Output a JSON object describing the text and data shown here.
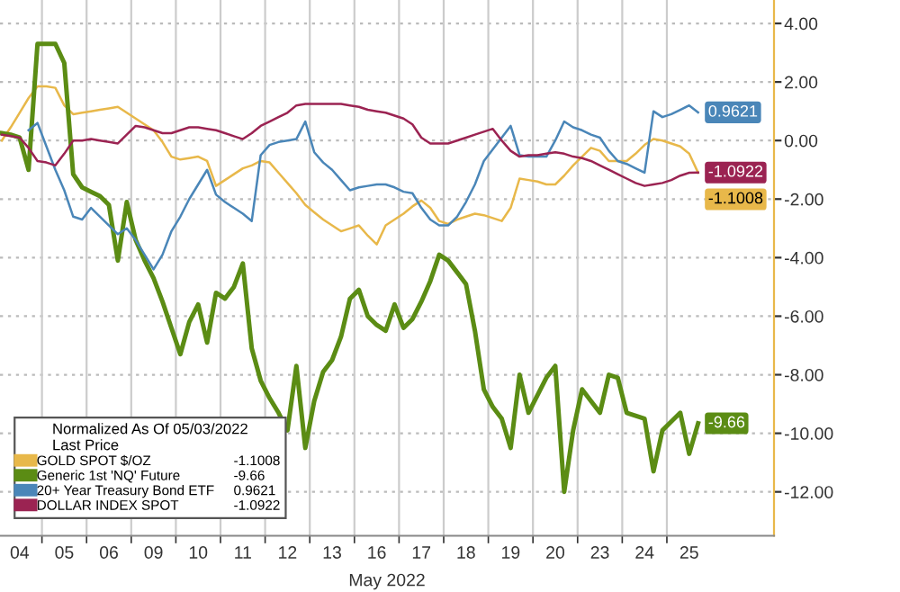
{
  "chart_data": {
    "type": "line",
    "xlabel": "May 2022",
    "legend_title": "Normalized As Of 05/03/2022\nLast Price",
    "categories": [
      null,
      null,
      "04",
      null,
      null,
      null,
      null,
      "05",
      null,
      null,
      null,
      null,
      "06",
      null,
      null,
      null,
      null,
      "09",
      null,
      null,
      null,
      null,
      "10",
      null,
      null,
      null,
      null,
      "11",
      null,
      null,
      null,
      null,
      "12",
      null,
      null,
      null,
      null,
      "13",
      null,
      null,
      null,
      null,
      "16",
      null,
      null,
      null,
      null,
      "17",
      null,
      null,
      null,
      null,
      "18",
      null,
      null,
      null,
      null,
      "19",
      null,
      null,
      null,
      null,
      "20",
      null,
      null,
      null,
      null,
      "23",
      null,
      null,
      null,
      null,
      "24",
      null,
      null,
      null,
      null,
      "25",
      null,
      null
    ],
    "ylim": [
      -13.5,
      4.8
    ],
    "yticks": [
      {
        "value": 4,
        "label": "4.00"
      },
      {
        "value": 2,
        "label": "2.00"
      },
      {
        "value": 0,
        "label": "0.00"
      },
      {
        "value": -2,
        "label": "-2.00"
      },
      {
        "value": -4,
        "label": "-4.00"
      },
      {
        "value": -6,
        "label": "-6.00"
      },
      {
        "value": -8,
        "label": "-8.00"
      },
      {
        "value": -10,
        "label": "-10.00"
      },
      {
        "value": -12,
        "label": "-12.00"
      }
    ],
    "grid": true,
    "legend": "bottom left",
    "series": [
      {
        "name": "GOLD SPOT $/OZ",
        "color": "#e8b84a",
        "values": [
          0.0,
          0.45,
          0.95,
          1.45,
          1.85,
          1.85,
          1.8,
          1.2,
          0.9,
          0.95,
          1.0,
          1.05,
          1.1,
          1.15,
          0.95,
          0.75,
          0.55,
          0.35,
          -0.05,
          -0.55,
          -0.65,
          -0.6,
          -0.55,
          -0.7,
          -1.55,
          -1.35,
          -1.15,
          -0.95,
          -0.85,
          -0.7,
          -0.75,
          -1.1,
          -1.45,
          -1.8,
          -2.2,
          -2.45,
          -2.7,
          -2.9,
          -3.1,
          -3.0,
          -2.9,
          -3.25,
          -3.55,
          -2.9,
          -2.7,
          -2.5,
          -2.25,
          -2.05,
          -2.3,
          -2.75,
          -2.85,
          -2.7,
          -2.6,
          -2.5,
          -2.55,
          -2.65,
          -2.75,
          -2.3,
          -1.3,
          -1.35,
          -1.4,
          -1.5,
          -1.5,
          -1.2,
          -0.85,
          -0.55,
          -0.25,
          -0.35,
          -0.7,
          -0.7,
          -0.7,
          -0.45,
          -0.15,
          0.05,
          0.0,
          -0.1,
          -0.2,
          -0.45,
          -1.1008,
          null
        ],
        "value_labels": [
          null,
          null,
          null,
          null,
          null,
          null,
          null,
          null,
          null,
          null,
          null,
          null,
          null,
          null,
          null,
          null,
          null,
          null,
          null,
          null,
          null,
          null,
          null,
          null,
          null,
          null,
          null,
          null,
          null,
          null,
          null,
          null,
          null,
          null,
          null,
          null,
          null,
          null,
          null,
          null,
          null,
          null,
          null,
          null,
          null,
          null,
          null,
          null,
          null,
          null,
          null,
          null,
          null,
          null,
          null,
          null,
          null,
          null,
          null,
          null,
          null,
          null,
          null,
          null,
          null,
          null,
          null,
          null,
          null,
          null,
          null,
          null,
          null,
          null,
          null,
          null,
          null,
          null,
          "-1.1008",
          null
        ]
      },
      {
        "name": "Generic 1st 'NQ' Future",
        "color": "#5b8c14",
        "values": [
          0.25,
          0.2,
          0.1,
          -1.0,
          3.3,
          3.3,
          3.3,
          2.65,
          -1.15,
          -1.6,
          -1.75,
          -1.9,
          -2.2,
          -4.1,
          -2.1,
          -3.4,
          -4.1,
          -4.7,
          -5.5,
          -6.4,
          -7.3,
          -6.2,
          -5.6,
          -6.9,
          -5.2,
          -5.4,
          -5.0,
          -4.2,
          -7.1,
          -8.2,
          -8.8,
          -9.3,
          -9.9,
          -7.7,
          -10.5,
          -8.9,
          -7.9,
          -7.5,
          -6.7,
          -5.4,
          -5.1,
          -6.0,
          -6.3,
          -6.5,
          -5.6,
          -6.4,
          -6.1,
          -5.5,
          -4.8,
          -3.9,
          -4.1,
          -4.5,
          -4.9,
          -6.5,
          -8.5,
          -9.1,
          -9.5,
          -10.5,
          -8.0,
          -9.3,
          -8.7,
          -8.1,
          -7.7,
          -12.0,
          -9.9,
          -8.5,
          -8.9,
          -9.3,
          -8.0,
          -8.1,
          -9.3,
          -9.4,
          -9.5,
          -11.3,
          -9.9,
          -9.6,
          -9.3,
          -10.7,
          -9.66,
          null
        ],
        "value_labels": [
          null,
          null,
          null,
          null,
          null,
          null,
          null,
          null,
          null,
          null,
          null,
          null,
          null,
          null,
          null,
          null,
          null,
          null,
          null,
          null,
          null,
          null,
          null,
          null,
          null,
          null,
          null,
          null,
          null,
          null,
          null,
          null,
          null,
          null,
          null,
          null,
          null,
          null,
          null,
          null,
          null,
          null,
          null,
          null,
          null,
          null,
          null,
          null,
          null,
          null,
          null,
          null,
          null,
          null,
          null,
          null,
          null,
          null,
          null,
          null,
          null,
          null,
          null,
          null,
          null,
          null,
          null,
          null,
          null,
          null,
          null,
          null,
          null,
          null,
          null,
          null,
          null,
          null,
          "-9.66",
          null
        ]
      },
      {
        "name": "20+ Year Treasury Bond ETF",
        "color": "#4a86b8",
        "values": [
          null,
          null,
          null,
          0.35,
          0.6,
          -0.2,
          -1.0,
          -1.7,
          -2.6,
          -2.7,
          -2.3,
          -2.6,
          -2.9,
          -3.2,
          -3.0,
          -3.4,
          -3.9,
          -4.4,
          -3.9,
          -3.1,
          -2.6,
          -2.0,
          -1.5,
          -1.0,
          -1.85,
          -2.1,
          -2.3,
          -2.5,
          -2.75,
          -0.5,
          -0.15,
          -0.05,
          0.0,
          0.05,
          0.65,
          -0.4,
          -0.75,
          -1.0,
          -1.35,
          -1.7,
          -1.6,
          -1.55,
          -1.5,
          -1.5,
          -1.6,
          -1.75,
          -1.8,
          -2.3,
          -2.7,
          -2.9,
          -2.9,
          -2.6,
          -2.1,
          -1.5,
          -0.7,
          -0.3,
          0.1,
          0.5,
          -0.5,
          -0.55,
          -0.55,
          -0.55,
          0.0,
          0.65,
          0.45,
          0.35,
          0.2,
          0.1,
          -0.35,
          -0.7,
          -0.8,
          -0.95,
          -1.1,
          1.0,
          0.8,
          0.9,
          1.05,
          1.2,
          0.9621,
          null
        ],
        "value_labels": [
          null,
          null,
          null,
          null,
          null,
          null,
          null,
          null,
          null,
          null,
          null,
          null,
          null,
          null,
          null,
          null,
          null,
          null,
          null,
          null,
          null,
          null,
          null,
          null,
          null,
          null,
          null,
          null,
          null,
          null,
          null,
          null,
          null,
          null,
          null,
          null,
          null,
          null,
          null,
          null,
          null,
          null,
          null,
          null,
          null,
          null,
          null,
          null,
          null,
          null,
          null,
          null,
          null,
          null,
          null,
          null,
          null,
          null,
          null,
          null,
          null,
          null,
          null,
          null,
          null,
          null,
          null,
          null,
          null,
          null,
          null,
          null,
          null,
          null,
          null,
          null,
          null,
          null,
          "0.9621",
          null
        ]
      },
      {
        "name": "DOLLAR INDEX SPOT",
        "color": "#9b2352",
        "values": [
          0.2,
          0.15,
          0.1,
          -0.25,
          -0.7,
          -0.75,
          -0.85,
          -0.45,
          0.0,
          0.0,
          0.05,
          0.0,
          -0.05,
          -0.1,
          0.2,
          0.5,
          0.45,
          0.35,
          0.25,
          0.25,
          0.35,
          0.45,
          0.45,
          0.4,
          0.35,
          0.25,
          0.15,
          0.05,
          0.25,
          0.5,
          0.65,
          0.8,
          0.95,
          1.2,
          1.25,
          1.25,
          1.25,
          1.25,
          1.25,
          1.2,
          1.15,
          1.05,
          1.0,
          0.95,
          0.85,
          0.75,
          0.55,
          0.1,
          -0.1,
          -0.1,
          -0.1,
          0.0,
          0.1,
          0.2,
          0.3,
          0.4,
          0.0,
          -0.35,
          -0.55,
          -0.5,
          -0.5,
          -0.45,
          -0.4,
          -0.45,
          -0.55,
          -0.6,
          -0.7,
          -0.85,
          -1.0,
          -1.15,
          -1.3,
          -1.45,
          -1.55,
          -1.5,
          -1.45,
          -1.35,
          -1.2,
          -1.1,
          -1.0922,
          null
        ],
        "value_labels": [
          null,
          null,
          null,
          null,
          null,
          null,
          null,
          null,
          null,
          null,
          null,
          null,
          null,
          null,
          null,
          null,
          null,
          null,
          null,
          null,
          null,
          null,
          null,
          null,
          null,
          null,
          null,
          null,
          null,
          null,
          null,
          null,
          null,
          null,
          null,
          null,
          null,
          null,
          null,
          null,
          null,
          null,
          null,
          null,
          null,
          null,
          null,
          null,
          null,
          null,
          null,
          null,
          null,
          null,
          null,
          null,
          null,
          null,
          null,
          null,
          null,
          null,
          null,
          null,
          null,
          null,
          null,
          null,
          null,
          null,
          null,
          null,
          null,
          null,
          null,
          null,
          null,
          null,
          "-1.0922",
          null
        ]
      }
    ]
  }
}
